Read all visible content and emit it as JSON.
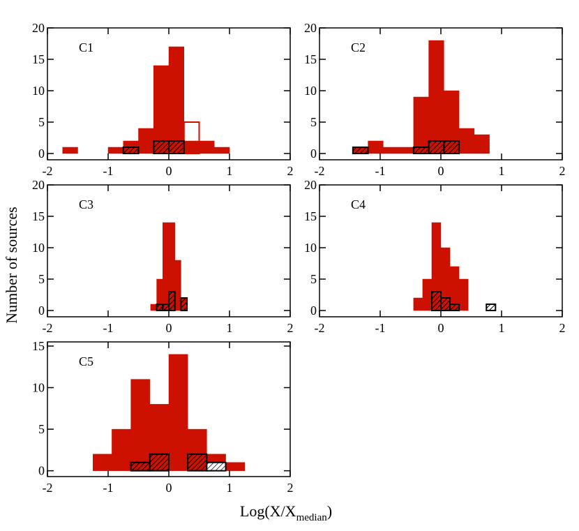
{
  "axis_labels": {
    "ylabel": "Number of sources",
    "xlabel_main": "Log(X/X",
    "xlabel_sub": "median",
    "xlabel_close": ")"
  },
  "chart_data": [
    {
      "type": "histogram",
      "title": "C1",
      "xlim": [
        -2,
        2
      ],
      "ylim": [
        -1,
        20
      ],
      "xticks": [
        -2,
        -1,
        0,
        1,
        2
      ],
      "yticks": [
        0,
        5,
        10,
        15,
        20
      ],
      "bins": [
        -1.75,
        -1.5,
        -1.25,
        -1,
        -0.75,
        -0.5,
        -0.25,
        0,
        0.25,
        0.5,
        0.75,
        1
      ],
      "series": [
        {
          "color": "#cc1100",
          "style": "fill",
          "values": [
            1,
            0,
            0,
            1,
            2,
            4,
            14,
            17,
            2,
            2,
            1
          ]
        },
        {
          "color": "#cc1100",
          "style": "outline",
          "values": [
            0,
            0,
            0,
            0,
            0,
            0,
            0,
            0,
            5,
            0,
            0
          ]
        },
        {
          "color": "#000000",
          "style": "hatch",
          "values": [
            0,
            0,
            0,
            0,
            1,
            0,
            2,
            2,
            0,
            0,
            0
          ]
        }
      ]
    },
    {
      "type": "histogram",
      "title": "C2",
      "xlim": [
        -2,
        2
      ],
      "ylim": [
        -1,
        20
      ],
      "xticks": [
        -2,
        -1,
        0,
        1,
        2
      ],
      "yticks": [
        0,
        5,
        10,
        15,
        20
      ],
      "bins": [
        -1.45,
        -1.2,
        -0.95,
        -0.7,
        -0.45,
        -0.2,
        0.05,
        0.3,
        0.55,
        0.8
      ],
      "series": [
        {
          "color": "#cc1100",
          "style": "fill",
          "values": [
            1,
            2,
            1,
            1,
            9,
            18,
            10,
            4,
            3
          ]
        },
        {
          "color": "#000000",
          "style": "hatch",
          "values": [
            1,
            0,
            0,
            0,
            1,
            2,
            2,
            0,
            0
          ]
        }
      ]
    },
    {
      "type": "histogram",
      "title": "C3",
      "xlim": [
        -2,
        2
      ],
      "ylim": [
        -1,
        20
      ],
      "xticks": [
        -2,
        -1,
        0,
        1,
        2
      ],
      "yticks": [
        0,
        5,
        10,
        15,
        20
      ],
      "bins": [
        -0.3,
        -0.2,
        -0.1,
        0,
        0.1,
        0.2,
        0.3
      ],
      "series": [
        {
          "color": "#cc1100",
          "style": "fill",
          "values": [
            1,
            5,
            14,
            14,
            8,
            2
          ]
        },
        {
          "color": "#000000",
          "style": "hatch",
          "values": [
            0,
            1,
            1,
            3,
            0,
            2
          ]
        }
      ]
    },
    {
      "type": "histogram",
      "title": "C4",
      "xlim": [
        -2,
        2
      ],
      "ylim": [
        -1,
        20
      ],
      "xticks": [
        -2,
        -1,
        0,
        1,
        2
      ],
      "yticks": [
        0,
        5,
        10,
        15,
        20
      ],
      "bins": [
        -0.45,
        -0.3,
        -0.15,
        0,
        0.15,
        0.3,
        0.45,
        0.6,
        0.75,
        0.9
      ],
      "series": [
        {
          "color": "#cc1100",
          "style": "fill",
          "values": [
            2,
            5,
            14,
            10,
            7,
            5,
            0,
            0,
            0
          ]
        },
        {
          "color": "#000000",
          "style": "hatch",
          "values": [
            0,
            0,
            3,
            2,
            1,
            0,
            0,
            0,
            1
          ]
        }
      ]
    },
    {
      "type": "histogram",
      "title": "C5",
      "xlim": [
        -2,
        2
      ],
      "ylim": [
        -0.7,
        15.5
      ],
      "xticks": [
        -2,
        -1,
        0,
        1,
        2
      ],
      "yticks": [
        0,
        5,
        10,
        15
      ],
      "bins": [
        -1.25,
        -0.9375,
        -0.625,
        -0.3125,
        0,
        0.3125,
        0.625,
        0.9375,
        1.25
      ],
      "series": [
        {
          "color": "#cc1100",
          "style": "fill",
          "values": [
            2,
            5,
            11,
            8,
            14,
            5,
            2,
            1
          ]
        },
        {
          "color": "#000000",
          "style": "hatch",
          "values": [
            0,
            0,
            1,
            2,
            0,
            2,
            0,
            0
          ]
        },
        {
          "color": "#000000",
          "style": "hatch-light",
          "values": [
            0,
            0,
            0,
            0,
            0,
            0,
            1,
            0
          ]
        }
      ]
    }
  ]
}
